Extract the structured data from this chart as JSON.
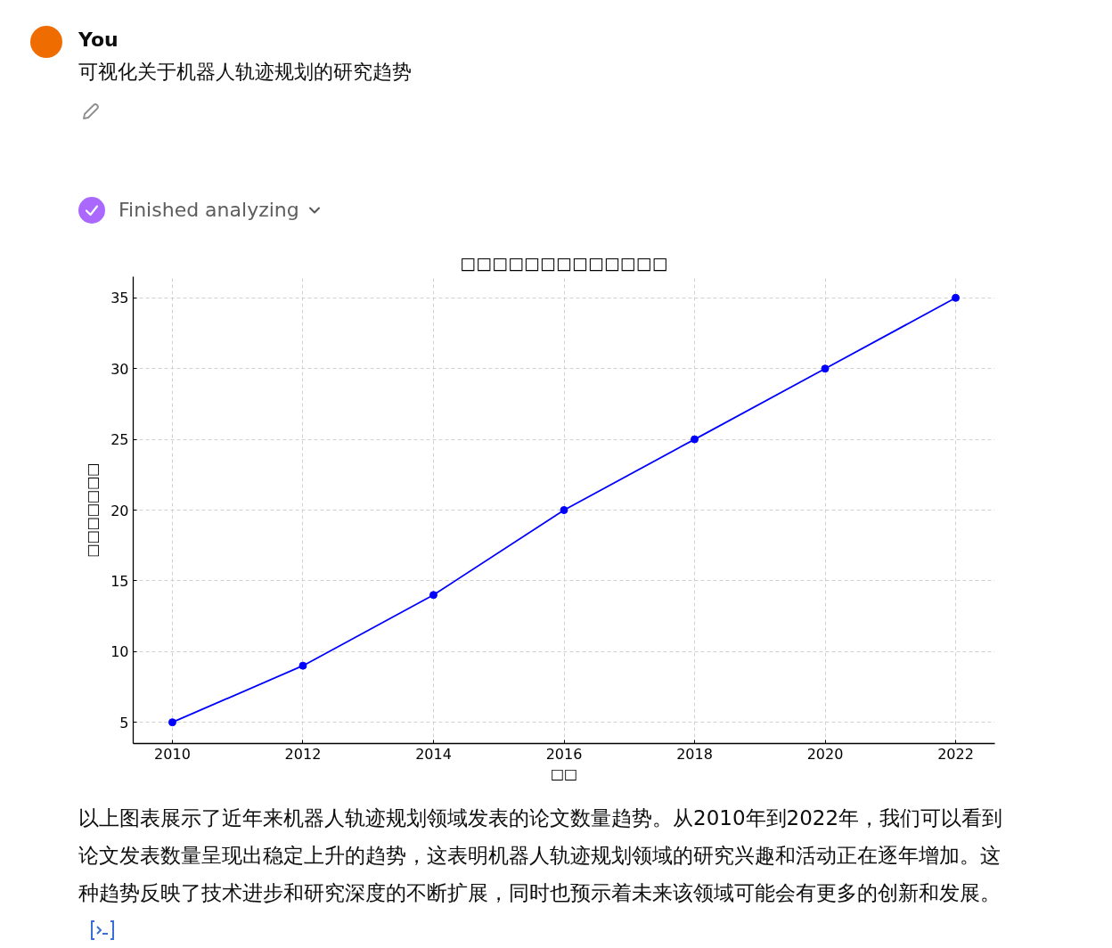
{
  "chart_data": {
    "type": "line",
    "title": "□□□□□□□□□□□□□",
    "xlabel": "□□",
    "ylabel": "□□□□□□□",
    "x": [
      2010,
      2012,
      2014,
      2016,
      2018,
      2020,
      2022
    ],
    "series": [
      {
        "color": "#0000ff",
        "values": [
          5,
          9,
          14,
          20,
          25,
          30,
          35
        ]
      }
    ],
    "xlim": [
      2009.4,
      2022.6
    ],
    "ylim": [
      3.5,
      36.5
    ],
    "xticks": [
      2010,
      2012,
      2014,
      2016,
      2018,
      2020,
      2022
    ],
    "yticks": [
      5,
      10,
      15,
      20,
      25,
      30,
      35
    ],
    "grid": true,
    "marker": "circle",
    "line_style": "solid",
    "annotations": [
      "You",
      "可视化关于机器人轨迹规划的研究趋势",
      "Finished analyzing",
      "以上图表展示了近年来机器人轨迹规划领域发表的论文数量趋势。从2010年到2022年，我们可以看到论文发表数量呈现出稳定上升的趋势，这表明机器人轨迹规划领域的研究兴趣和活动正在逐年增加。这种趋势反映了技术进步和研究深度的不断扩展，同时也预示着未来该领域可能会有更多的创新和发展。"
    ]
  }
}
